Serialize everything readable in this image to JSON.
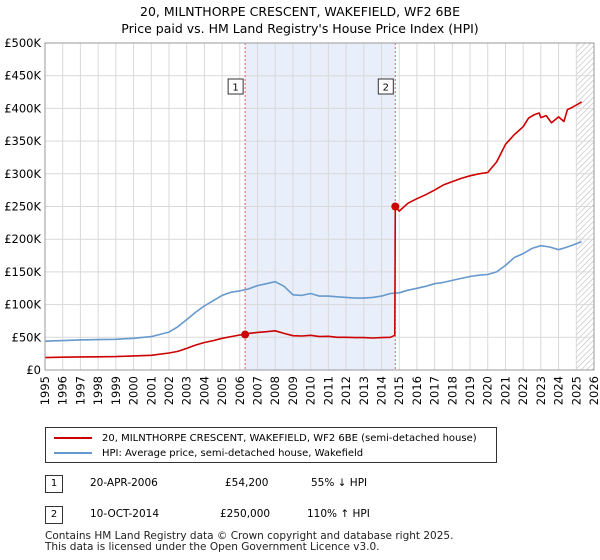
{
  "header": {
    "title": "20, MILNTHORPE CRESCENT, WAKEFIELD, WF2 6BE",
    "subtitle": "Price paid vs. HM Land Registry's House Price Index (HPI)"
  },
  "chart_data": {
    "type": "line",
    "title": "20, MILNTHORPE CRESCENT, WAKEFIELD, WF2 6BE",
    "subtitle": "Price paid vs. HM Land Registry's House Price Index (HPI)",
    "xlim": [
      1995,
      2026
    ],
    "ylim": [
      0,
      500000
    ],
    "y_ticks": [
      0,
      50000,
      100000,
      150000,
      200000,
      250000,
      300000,
      350000,
      400000,
      450000,
      500000
    ],
    "y_tick_labels": [
      "£0",
      "£50K",
      "£100K",
      "£150K",
      "£200K",
      "£250K",
      "£300K",
      "£350K",
      "£400K",
      "£450K",
      "£500K"
    ],
    "x_ticks": [
      1995,
      1996,
      1997,
      1998,
      1999,
      2000,
      2001,
      2002,
      2003,
      2004,
      2005,
      2006,
      2007,
      2008,
      2009,
      2010,
      2011,
      2012,
      2013,
      2014,
      2015,
      2016,
      2017,
      2018,
      2019,
      2020,
      2021,
      2022,
      2023,
      2024,
      2025,
      2026
    ],
    "x_tick_labels": [
      "1995",
      "1996",
      "1997",
      "1998",
      "1999",
      "2000",
      "2001",
      "2002",
      "2003",
      "2004",
      "2005",
      "2006",
      "2007",
      "2008",
      "2009",
      "2010",
      "2011",
      "2012",
      "2013",
      "2014",
      "2015",
      "2016",
      "2017",
      "2018",
      "2019",
      "2020",
      "2021",
      "2022",
      "2023",
      "2024",
      "2025",
      "2026"
    ],
    "grid": true,
    "shaded_region": [
      2006.3,
      2014.78
    ],
    "projection_hatch_from": 2025.0,
    "colors": {
      "property": "#cc0000",
      "hpi": "#6699cc",
      "shade": "#e8eefa",
      "sale_marker": "#cc0000",
      "vline": "#e06060"
    },
    "series": [
      {
        "name": "20, MILNTHORPE CRESCENT, WAKEFIELD, WF2 6BE (semi-detached house)",
        "color": "#cc0000",
        "x": [
          1995,
          1996,
          1997,
          1998,
          1999,
          2000,
          2001,
          2002,
          2002.5,
          2003,
          2003.5,
          2004,
          2004.5,
          2005,
          2005.5,
          2006,
          2006.3,
          2006.5,
          2007,
          2007.5,
          2008,
          2008.5,
          2009,
          2009.5,
          2010,
          2010.5,
          2011,
          2011.5,
          2012,
          2012.5,
          2013,
          2013.5,
          2014,
          2014.5,
          2014.75,
          2014.78,
          2015,
          2015.5,
          2016,
          2016.5,
          2017,
          2017.5,
          2018,
          2018.5,
          2019,
          2019.5,
          2020,
          2020.5,
          2021,
          2021.5,
          2022,
          2022.3,
          2022.6,
          2022.9,
          2023,
          2023.3,
          2023.6,
          2024,
          2024.3,
          2024.5,
          2024.8,
          2025,
          2025.3
        ],
        "y": [
          19000,
          19500,
          20000,
          20200,
          20500,
          21500,
          22500,
          26000,
          28500,
          33000,
          38000,
          42000,
          45000,
          48500,
          51000,
          53500,
          54200,
          56000,
          57500,
          58500,
          60000,
          56000,
          52500,
          52000,
          53000,
          51000,
          51500,
          50000,
          50000,
          49500,
          49500,
          49000,
          49500,
          50000,
          53000,
          250000,
          243000,
          255000,
          262000,
          268000,
          275000,
          283000,
          288000,
          293000,
          297000,
          300000,
          302000,
          318000,
          345000,
          360000,
          372000,
          385000,
          390000,
          393000,
          386000,
          389000,
          378000,
          387000,
          380000,
          398000,
          402000,
          405000,
          410000
        ]
      },
      {
        "name": "HPI: Average price, semi-detached house, Wakefield",
        "color": "#6699cc",
        "x": [
          1995,
          1996,
          1997,
          1998,
          1999,
          2000,
          2001,
          2002,
          2002.5,
          2003,
          2003.5,
          2004,
          2004.5,
          2005,
          2005.5,
          2006,
          2006.5,
          2007,
          2007.5,
          2008,
          2008.5,
          2009,
          2009.5,
          2010,
          2010.5,
          2011,
          2011.5,
          2012,
          2012.5,
          2013,
          2013.5,
          2014,
          2014.5,
          2015,
          2015.5,
          2016,
          2016.5,
          2017,
          2017.5,
          2018,
          2018.5,
          2019,
          2019.5,
          2020,
          2020.5,
          2021,
          2021.5,
          2022,
          2022.5,
          2023,
          2023.5,
          2024,
          2024.5,
          2025,
          2025.3
        ],
        "y": [
          44000,
          45000,
          46000,
          46500,
          47000,
          48500,
          51000,
          58000,
          66000,
          77000,
          88000,
          98000,
          106000,
          114000,
          119000,
          121000,
          124000,
          129000,
          132000,
          135000,
          128000,
          115000,
          114000,
          117000,
          113000,
          113000,
          112000,
          111000,
          110000,
          110000,
          111000,
          113000,
          117000,
          118000,
          122000,
          125000,
          128000,
          132000,
          134000,
          137000,
          140000,
          143000,
          145000,
          146000,
          150000,
          160000,
          172000,
          178000,
          186000,
          190000,
          188000,
          184000,
          188000,
          193000,
          196000
        ]
      }
    ],
    "sales": [
      {
        "label": "1",
        "x": 2006.3,
        "price": 54200
      },
      {
        "label": "2",
        "x": 2014.78,
        "price": 250000
      }
    ]
  },
  "legend": {
    "property": "20, MILNTHORPE CRESCENT, WAKEFIELD, WF2 6BE (semi-detached house)",
    "hpi": "HPI: Average price, semi-detached house, Wakefield"
  },
  "sales_table": [
    {
      "num": "1",
      "date": "20-APR-2006",
      "price": "£54,200",
      "hpi": "55% ↓ HPI"
    },
    {
      "num": "2",
      "date": "10-OCT-2014",
      "price": "£250,000",
      "hpi": "110% ↑ HPI"
    }
  ],
  "footer": {
    "line1": "Contains HM Land Registry data © Crown copyright and database right 2025.",
    "line2": "This data is licensed under the Open Government Licence v3.0."
  }
}
